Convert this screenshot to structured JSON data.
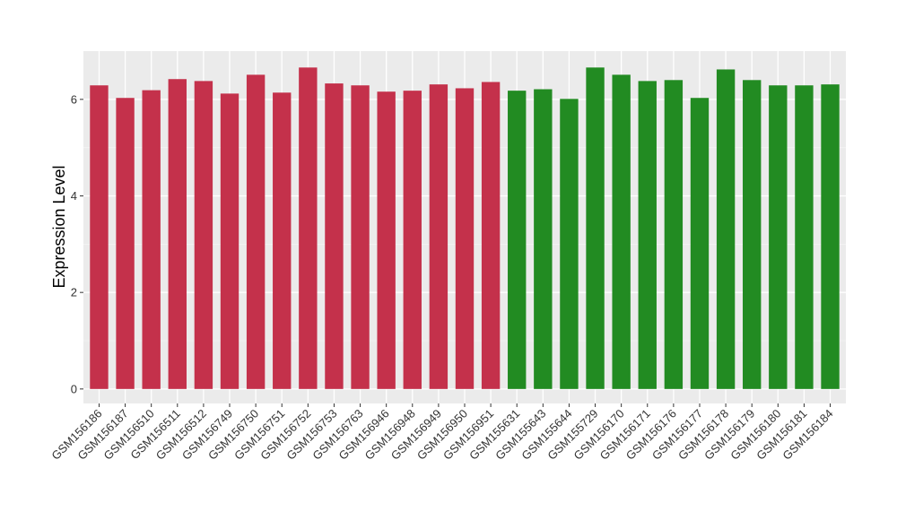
{
  "chart_data": {
    "type": "bar",
    "title": "",
    "xlabel": "",
    "ylabel": "Expression Level",
    "ylim": [
      -0.3,
      7.0
    ],
    "yticks": [
      0,
      2,
      4,
      6
    ],
    "ytick_labels": [
      "0",
      "2",
      "4",
      "6"
    ],
    "grid": true,
    "legend": "none",
    "background": "#ebebeb",
    "colors": {
      "group1": "#c4314b",
      "group2": "#228b22"
    },
    "categories": [
      "GSM156186",
      "GSM156187",
      "GSM156510",
      "GSM156511",
      "GSM156512",
      "GSM156749",
      "GSM156750",
      "GSM156751",
      "GSM156752",
      "GSM156753",
      "GSM156763",
      "GSM156946",
      "GSM156948",
      "GSM156949",
      "GSM156950",
      "GSM156951",
      "GSM155631",
      "GSM155643",
      "GSM155644",
      "GSM155729",
      "GSM156170",
      "GSM156171",
      "GSM156176",
      "GSM156177",
      "GSM156178",
      "GSM156179",
      "GSM156180",
      "GSM156181",
      "GSM156184"
    ],
    "values": [
      6.29,
      6.03,
      6.19,
      6.42,
      6.38,
      6.12,
      6.51,
      6.14,
      6.66,
      6.33,
      6.29,
      6.16,
      6.18,
      6.31,
      6.23,
      6.36,
      6.18,
      6.21,
      6.01,
      6.66,
      6.51,
      6.38,
      6.4,
      6.03,
      6.62,
      6.4,
      6.29,
      6.29,
      6.31
    ],
    "groups": [
      "group1",
      "group1",
      "group1",
      "group1",
      "group1",
      "group1",
      "group1",
      "group1",
      "group1",
      "group1",
      "group1",
      "group1",
      "group1",
      "group1",
      "group1",
      "group1",
      "group2",
      "group2",
      "group2",
      "group2",
      "group2",
      "group2",
      "group2",
      "group2",
      "group2",
      "group2",
      "group2",
      "group2",
      "group2"
    ]
  }
}
